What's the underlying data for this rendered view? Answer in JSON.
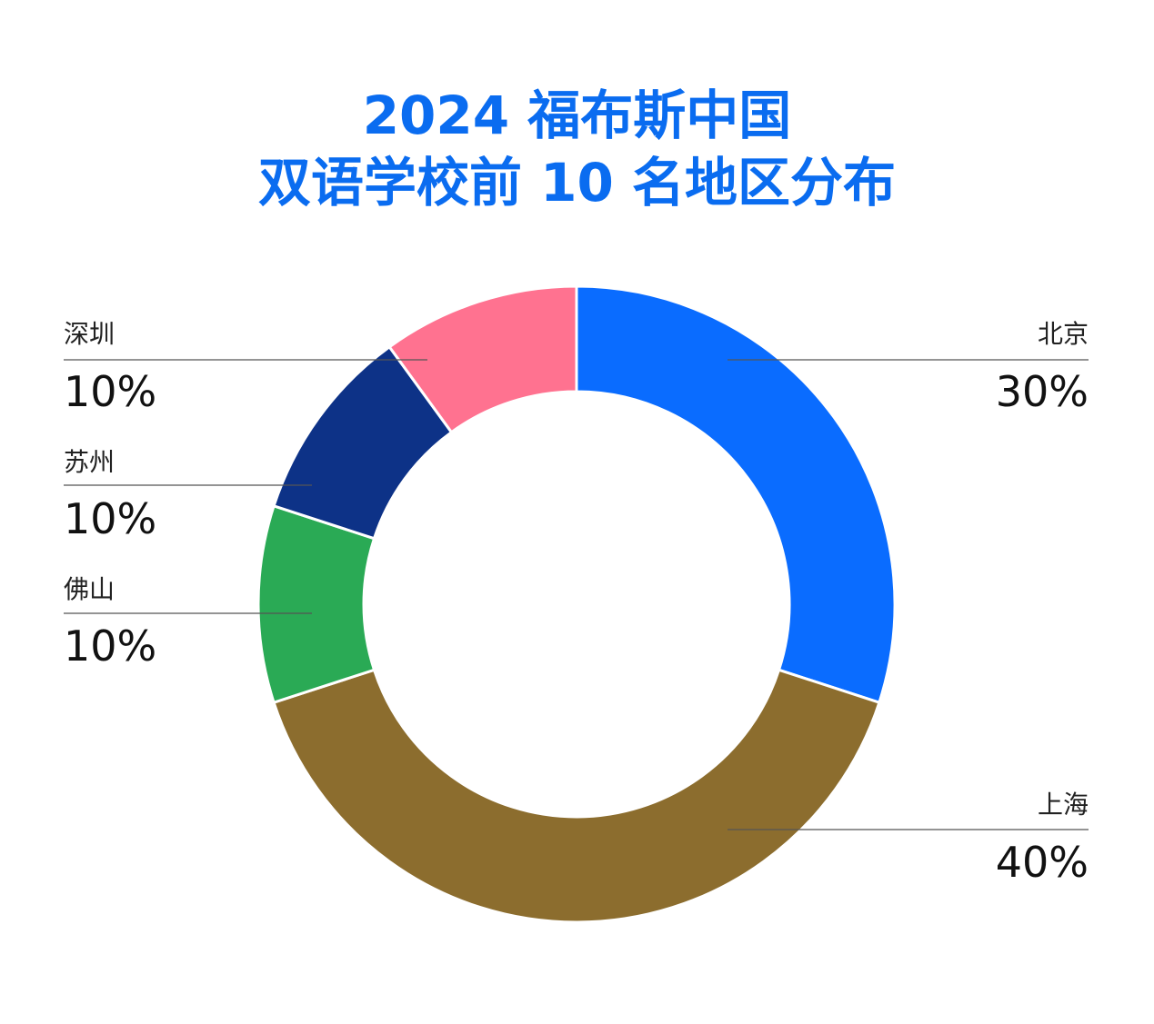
{
  "chart_data": {
    "type": "pie",
    "variant": "donut",
    "title_lines": [
      "2024 福布斯中国",
      "双语学校前 10 名地区分布"
    ],
    "categories": [
      "北京",
      "上海",
      "佛山",
      "苏州",
      "深圳"
    ],
    "values": [
      30,
      40,
      10,
      10,
      10
    ],
    "value_labels": [
      "30%",
      "40%",
      "10%",
      "10%",
      "10%"
    ],
    "colors": [
      "#0a6cff",
      "#8c6d2e",
      "#2aaa55",
      "#0d3287",
      "#ff7290"
    ],
    "start_angle_deg": 0,
    "direction": "clockwise"
  }
}
